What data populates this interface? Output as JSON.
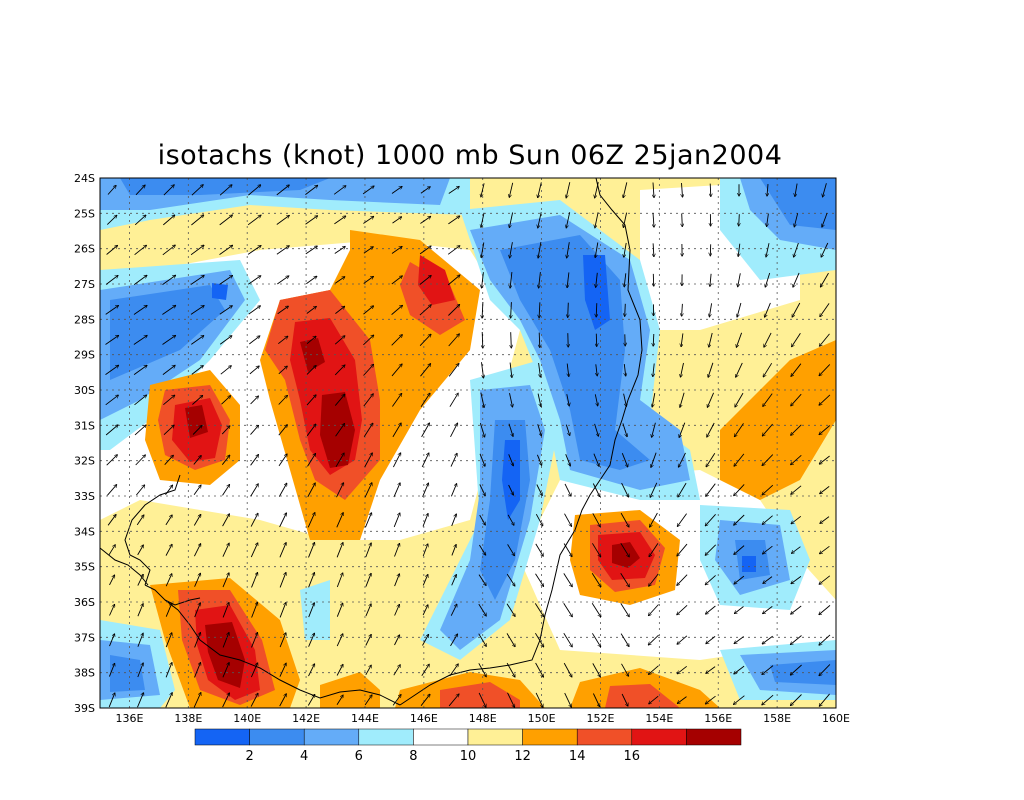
{
  "title": "isotachs (knot) 1000 mb Sun 06Z 25jan2004",
  "lat_labels": [
    "24S",
    "25S",
    "26S",
    "27S",
    "28S",
    "29S",
    "30S",
    "31S",
    "32S",
    "33S",
    "34S",
    "35S",
    "36S",
    "37S",
    "38S",
    "39S"
  ],
  "lon_labels": [
    "136E",
    "138E",
    "140E",
    "142E",
    "144E",
    "146E",
    "148E",
    "150E",
    "152E",
    "154E",
    "156E",
    "158E",
    "160E"
  ],
  "colorbar": {
    "colors": [
      "#1464f4",
      "#3c8cf0",
      "#64acf8",
      "#a0ecfc",
      "#ffffff",
      "#fff096",
      "#ffa000",
      "#f05028",
      "#e11414",
      "#a50000"
    ],
    "labels": [
      "2",
      "4",
      "6",
      "8",
      "10",
      "12",
      "14",
      "16"
    ]
  },
  "field_colors": {
    "c0": "#ffffff",
    "c1": "#fff096",
    "c2": "#ffa000",
    "c3": "#f05028",
    "c4": "#e11414",
    "c5": "#a50000",
    "b1": "#a0ecfc",
    "b2": "#64acf8",
    "b3": "#3c8cf0",
    "b4": "#1464f4"
  }
}
